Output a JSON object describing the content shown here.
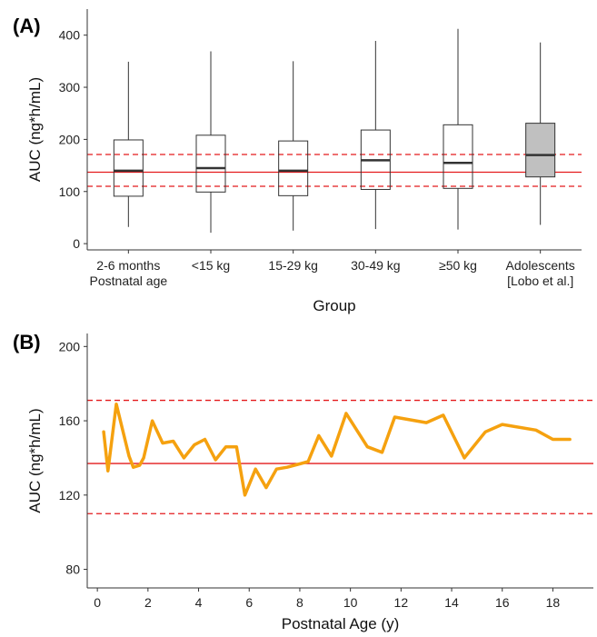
{
  "chart_data": [
    {
      "panel": "(A)",
      "type": "box",
      "xlabel": "Group",
      "ylabel": "AUC (ng*h/mL)",
      "ylim": [
        -12,
        450
      ],
      "yticks": [
        0,
        100,
        200,
        300,
        400
      ],
      "grid": false,
      "categories": [
        [
          "2-6 months",
          "Postnatal age"
        ],
        [
          "<15 kg"
        ],
        [
          "15-29 kg"
        ],
        [
          "30-49 kg"
        ],
        [
          "≥50 kg"
        ],
        [
          "Adolescents",
          "[Lobo et al.]"
        ]
      ],
      "boxes": [
        {
          "min": 32,
          "q1": 91,
          "median": 140,
          "q3": 199,
          "max": 349,
          "fill": "#ffffff"
        },
        {
          "min": 21,
          "q1": 99,
          "median": 145,
          "q3": 208,
          "max": 369,
          "fill": "#ffffff"
        },
        {
          "min": 25,
          "q1": 92,
          "median": 140,
          "q3": 197,
          "max": 350,
          "fill": "#ffffff"
        },
        {
          "min": 28,
          "q1": 104,
          "median": 160,
          "q3": 218,
          "max": 389,
          "fill": "#ffffff"
        },
        {
          "min": 27,
          "q1": 106,
          "median": 155,
          "q3": 228,
          "max": 412,
          "fill": "#ffffff"
        },
        {
          "min": 36,
          "q1": 128,
          "median": 170,
          "q3": 231,
          "max": 386,
          "fill": "#c0c0c0"
        }
      ],
      "reference_lines": [
        {
          "y": 137,
          "style": "solid",
          "color": "#e41a1c"
        },
        {
          "y": 171,
          "style": "dashed",
          "color": "#e41a1c"
        },
        {
          "y": 110,
          "style": "dashed",
          "color": "#e41a1c"
        }
      ]
    },
    {
      "panel": "(B)",
      "type": "line",
      "xlabel": "Postnatal Age (y)",
      "ylabel": "AUC (ng*h/mL)",
      "xlim": [
        -0.4,
        19.6
      ],
      "ylim": [
        70,
        207
      ],
      "xticks": [
        0,
        2,
        4,
        6,
        8,
        10,
        12,
        14,
        16,
        18
      ],
      "yticks": [
        80,
        120,
        160,
        200
      ],
      "grid": false,
      "series": [
        {
          "color": "#f5a10f",
          "x": [
            0.25,
            0.42,
            0.75,
            1.0,
            1.25,
            1.42,
            1.67,
            1.83,
            2.17,
            2.58,
            3.0,
            3.42,
            3.83,
            4.25,
            4.67,
            5.08,
            5.5,
            5.83,
            6.25,
            6.67,
            7.08,
            7.5,
            8.33,
            8.75,
            9.25,
            9.83,
            10.67,
            11.25,
            11.75,
            13.0,
            13.67,
            14.5,
            15.33,
            16.0,
            17.33,
            18.0,
            18.67
          ],
          "y": [
            154,
            133,
            169,
            155,
            141,
            135,
            136,
            140,
            160,
            148,
            149,
            140,
            147,
            150,
            139,
            146,
            146,
            120,
            134,
            124,
            134,
            135,
            138,
            152,
            141,
            164,
            146,
            143,
            162,
            159,
            163,
            140,
            154,
            158,
            155,
            150,
            150
          ]
        }
      ],
      "reference_lines": [
        {
          "y": 137,
          "style": "solid",
          "color": "#e41a1c"
        },
        {
          "y": 171,
          "style": "dashed",
          "color": "#e41a1c"
        },
        {
          "y": 110,
          "style": "dashed",
          "color": "#e41a1c"
        }
      ]
    }
  ]
}
